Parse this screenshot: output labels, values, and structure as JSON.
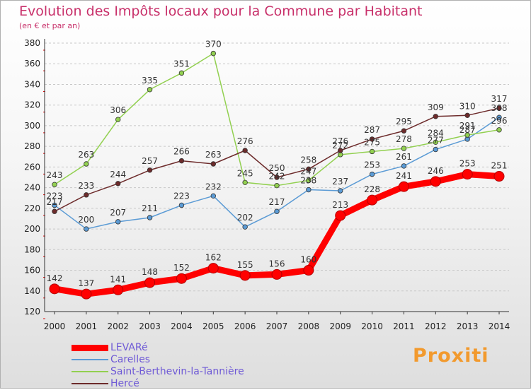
{
  "header": {
    "title": "Evolution des Impôts locaux pour la Commune par Habitant",
    "subtitle": "(en € et par an)"
  },
  "logo": {
    "text": "Proxiti"
  },
  "chart_data": {
    "type": "line",
    "title": "Evolution des Impôts locaux pour la Commune par Habitant",
    "subtitle": "(en € et par an)",
    "xlabel": "",
    "ylabel": "",
    "x": [
      2000,
      2001,
      2002,
      2003,
      2004,
      2005,
      2006,
      2007,
      2008,
      2009,
      2010,
      2011,
      2012,
      2013,
      2014
    ],
    "ylim": [
      120,
      380
    ],
    "yticks": [
      120,
      140,
      160,
      180,
      200,
      220,
      240,
      260,
      280,
      300,
      320,
      340,
      360,
      380
    ],
    "grid": "horizontal dashed",
    "legend_position": "bottom-left",
    "series": [
      {
        "name": "LEVARé",
        "color": "#ff0000",
        "highlight": true,
        "values": [
          142,
          137,
          141,
          148,
          152,
          162,
          155,
          156,
          160,
          213,
          228,
          241,
          246,
          253,
          251
        ]
      },
      {
        "name": "Carelles",
        "color": "#5b9bd5",
        "highlight": false,
        "values": [
          223,
          200,
          207,
          211,
          223,
          232,
          202,
          217,
          238,
          237,
          253,
          261,
          277,
          287,
          308
        ]
      },
      {
        "name": "Saint-Berthevin-la-Tannière",
        "color": "#92d050",
        "highlight": false,
        "values": [
          243,
          263,
          306,
          335,
          351,
          370,
          245,
          242,
          247,
          272,
          275,
          278,
          284,
          291,
          296
        ]
      },
      {
        "name": "Hercé",
        "color": "#6d2b2b",
        "highlight": false,
        "values": [
          217,
          233,
          244,
          257,
          266,
          263,
          276,
          250,
          258,
          276,
          287,
          295,
          309,
          310,
          317
        ]
      }
    ]
  }
}
